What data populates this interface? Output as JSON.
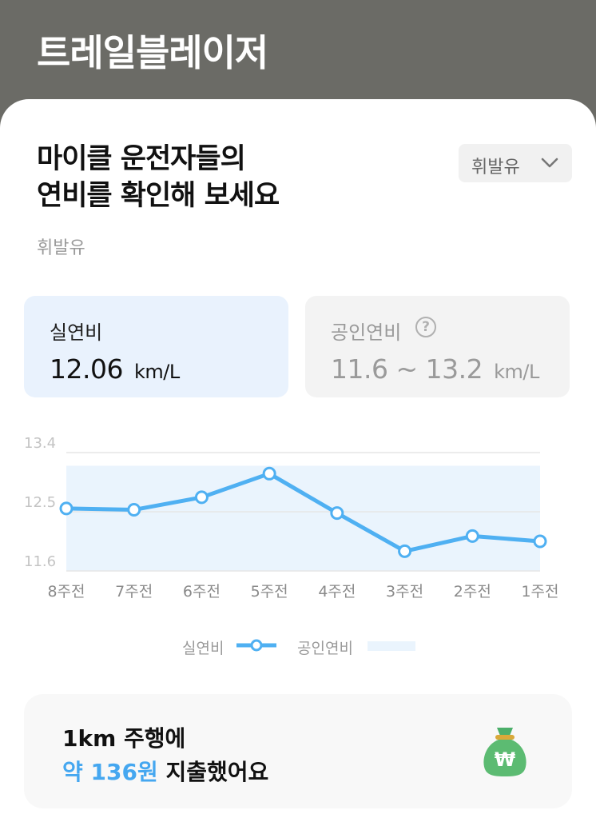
{
  "app": {
    "title": "트레일블레이저"
  },
  "heading": {
    "line1": "마이클 운전자들의",
    "line2": "연비를 확인해 보세요"
  },
  "fuel_filter": {
    "selected": "휘발유",
    "icon": "chevron-down-icon"
  },
  "fuel_subtitle": "휘발유",
  "cards": {
    "real": {
      "label": "실연비",
      "value": "12.06",
      "unit": "km/L"
    },
    "official": {
      "label": "공인연비",
      "value": "11.6 ~ 13.2",
      "unit": "km/L",
      "help_icon": "question-circle-icon",
      "help_glyph": "?"
    }
  },
  "chart_data": {
    "type": "line",
    "categories": [
      "8주전",
      "7주전",
      "6주전",
      "5주전",
      "4주전",
      "3주전",
      "2주전",
      "1주전"
    ],
    "series": [
      {
        "name": "실연비",
        "values": [
          12.55,
          12.53,
          12.72,
          13.08,
          12.48,
          11.9,
          12.13,
          12.05
        ]
      }
    ],
    "band": {
      "name": "공인연비",
      "low": 11.6,
      "high": 13.2
    },
    "ylim": [
      11.6,
      13.4
    ],
    "yticks": [
      "13.4",
      "12.5",
      "11.6"
    ],
    "colors": {
      "line": "#4fb0f2",
      "band": "#eaf4fd",
      "grid": "#e6e6e6"
    },
    "legend_position": "bottom"
  },
  "legend": {
    "real_label": "실연비",
    "official_label": "공인연비"
  },
  "cost": {
    "line1": "1km 주행에",
    "highlight": "약 136원",
    "suffix": " 지출했어요",
    "icon": "money-bag-icon",
    "icon_glyph": "₩"
  }
}
